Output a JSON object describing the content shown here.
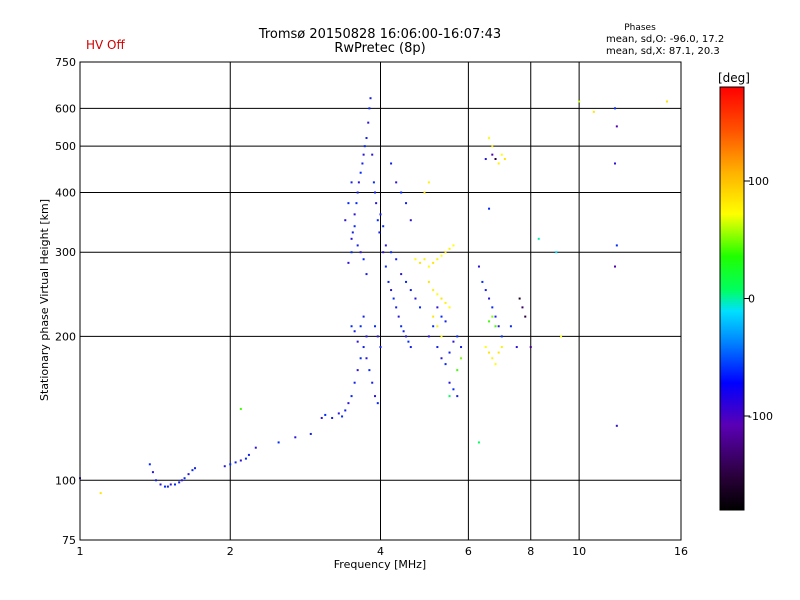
{
  "header": {
    "hv_status": "HV Off",
    "title": "Tromsø 20150828 16:06:00-16:07:43",
    "subtitle": "RwPretec (8p)"
  },
  "phase_stats": {
    "title": "Phases",
    "o_line": "mean, sd,O: -96.0, 17.2",
    "x_line": "mean, sd,X:  87.1, 20.3"
  },
  "colorbar": {
    "unit_label": "[deg]",
    "range": [
      -180,
      180
    ],
    "ticks": [
      {
        "value": 100,
        "label": "100"
      },
      {
        "value": 0,
        "label": "0"
      },
      {
        "value": -100,
        "label": "-100"
      }
    ]
  },
  "chart_data": {
    "type": "scatter",
    "title": "Tromsø 20150828 16:06:00-16:07:43",
    "subtitle": "RwPretec (8p)",
    "xlabel": "Frequency [MHz]",
    "ylabel": "Stationary phase Virtual Height [km]",
    "x_scale": "log",
    "y_scale": "log",
    "xlim": [
      1,
      16
    ],
    "ylim": [
      75,
      750
    ],
    "x_ticks": [
      {
        "value": 1,
        "label": "1"
      },
      {
        "value": 2,
        "label": "2"
      },
      {
        "value": 4,
        "label": "4"
      },
      {
        "value": 6,
        "label": "6"
      },
      {
        "value": 8,
        "label": "8"
      },
      {
        "value": 10,
        "label": "10"
      },
      {
        "value": 16,
        "label": "16"
      }
    ],
    "y_ticks": [
      {
        "value": 75,
        "label": "75"
      },
      {
        "value": 100,
        "label": "100"
      },
      {
        "value": 200,
        "label": "200"
      },
      {
        "value": 300,
        "label": "300"
      },
      {
        "value": 400,
        "label": "400"
      },
      {
        "value": 500,
        "label": "500"
      },
      {
        "value": 600,
        "label": "600"
      },
      {
        "value": 750,
        "label": "750"
      }
    ],
    "grid": true,
    "color_by": "phase_deg",
    "points": [
      [
        1.0,
        101,
        -110
      ],
      [
        1.1,
        94,
        110
      ],
      [
        1.38,
        108,
        -100
      ],
      [
        1.4,
        104,
        -110
      ],
      [
        1.42,
        100,
        -105
      ],
      [
        1.45,
        98,
        -110
      ],
      [
        1.48,
        97,
        -100
      ],
      [
        1.5,
        97,
        -105
      ],
      [
        1.52,
        98,
        -110
      ],
      [
        1.55,
        98,
        -100
      ],
      [
        1.58,
        99,
        -105
      ],
      [
        1.6,
        100,
        -110
      ],
      [
        1.62,
        101,
        -100
      ],
      [
        1.65,
        103,
        -110
      ],
      [
        1.68,
        105,
        -100
      ],
      [
        1.7,
        106,
        -105
      ],
      [
        1.95,
        107,
        -110
      ],
      [
        2.0,
        108,
        -100
      ],
      [
        2.05,
        109,
        -105
      ],
      [
        2.1,
        110,
        -110
      ],
      [
        2.15,
        111,
        -100
      ],
      [
        2.18,
        113,
        -105
      ],
      [
        2.25,
        117,
        -110
      ],
      [
        2.1,
        141,
        40
      ],
      [
        2.5,
        120,
        -100
      ],
      [
        2.7,
        123,
        -110
      ],
      [
        2.9,
        125,
        -105
      ],
      [
        3.05,
        135,
        -110
      ],
      [
        3.1,
        137,
        -100
      ],
      [
        3.2,
        135,
        -105
      ],
      [
        3.3,
        138,
        -110
      ],
      [
        3.35,
        136,
        -100
      ],
      [
        3.4,
        140,
        -105
      ],
      [
        3.45,
        145,
        -110
      ],
      [
        3.5,
        150,
        -100
      ],
      [
        3.55,
        160,
        -105
      ],
      [
        3.6,
        170,
        -110
      ],
      [
        3.65,
        180,
        -100
      ],
      [
        3.7,
        190,
        -105
      ],
      [
        3.75,
        200,
        -110
      ],
      [
        3.5,
        210,
        -100
      ],
      [
        3.55,
        205,
        -105
      ],
      [
        3.6,
        195,
        -110
      ],
      [
        3.65,
        210,
        -100
      ],
      [
        3.7,
        220,
        -105
      ],
      [
        3.75,
        180,
        -110
      ],
      [
        3.8,
        170,
        -100
      ],
      [
        3.85,
        160,
        -105
      ],
      [
        3.9,
        150,
        -110
      ],
      [
        3.95,
        145,
        -100
      ],
      [
        4.0,
        190,
        -105
      ],
      [
        3.95,
        200,
        -110
      ],
      [
        3.9,
        210,
        -100
      ],
      [
        3.45,
        285,
        -110
      ],
      [
        3.5,
        300,
        -100
      ],
      [
        3.52,
        330,
        -105
      ],
      [
        3.55,
        360,
        -110
      ],
      [
        3.58,
        380,
        -100
      ],
      [
        3.6,
        400,
        -105
      ],
      [
        3.62,
        420,
        -110
      ],
      [
        3.65,
        440,
        -100
      ],
      [
        3.68,
        460,
        -105
      ],
      [
        3.7,
        480,
        -110
      ],
      [
        3.72,
        500,
        -100
      ],
      [
        3.75,
        520,
        -105
      ],
      [
        3.78,
        560,
        -110
      ],
      [
        3.8,
        600,
        -100
      ],
      [
        3.82,
        630,
        -105
      ],
      [
        3.85,
        480,
        -110
      ],
      [
        3.88,
        420,
        -100
      ],
      [
        3.9,
        400,
        -105
      ],
      [
        3.92,
        380,
        -110
      ],
      [
        3.95,
        350,
        -100
      ],
      [
        3.98,
        330,
        -105
      ],
      [
        3.5,
        320,
        -110
      ],
      [
        3.55,
        340,
        -100
      ],
      [
        3.6,
        310,
        -105
      ],
      [
        3.65,
        300,
        -110
      ],
      [
        3.7,
        290,
        -100
      ],
      [
        3.75,
        270,
        -105
      ],
      [
        3.4,
        350,
        -110
      ],
      [
        3.45,
        380,
        -100
      ],
      [
        3.5,
        420,
        -105
      ],
      [
        4.05,
        300,
        -110
      ],
      [
        4.1,
        280,
        -100
      ],
      [
        4.15,
        260,
        -105
      ],
      [
        4.2,
        250,
        -110
      ],
      [
        4.25,
        240,
        -100
      ],
      [
        4.3,
        230,
        -105
      ],
      [
        4.35,
        220,
        -110
      ],
      [
        4.4,
        210,
        -100
      ],
      [
        4.45,
        205,
        -105
      ],
      [
        4.5,
        200,
        -110
      ],
      [
        4.55,
        195,
        -100
      ],
      [
        4.6,
        190,
        -105
      ],
      [
        4.1,
        310,
        -110
      ],
      [
        4.2,
        300,
        -100
      ],
      [
        4.3,
        290,
        -105
      ],
      [
        4.4,
        270,
        -110
      ],
      [
        4.5,
        260,
        -100
      ],
      [
        4.6,
        250,
        -105
      ],
      [
        4.7,
        240,
        -110
      ],
      [
        4.8,
        230,
        -100
      ],
      [
        4.2,
        460,
        -105
      ],
      [
        4.3,
        420,
        -110
      ],
      [
        4.4,
        400,
        -100
      ],
      [
        4.5,
        380,
        -105
      ],
      [
        4.6,
        350,
        -110
      ],
      [
        4.05,
        340,
        -100
      ],
      [
        4.0,
        360,
        -105
      ],
      [
        4.7,
        290,
        100
      ],
      [
        4.8,
        285,
        110
      ],
      [
        4.9,
        290,
        105
      ],
      [
        5.0,
        280,
        100
      ],
      [
        5.1,
        285,
        110
      ],
      [
        5.2,
        290,
        105
      ],
      [
        5.3,
        295,
        100
      ],
      [
        5.4,
        300,
        110
      ],
      [
        5.5,
        305,
        105
      ],
      [
        5.6,
        310,
        100
      ],
      [
        5.0,
        260,
        110
      ],
      [
        5.1,
        250,
        105
      ],
      [
        5.2,
        245,
        100
      ],
      [
        5.3,
        240,
        110
      ],
      [
        5.4,
        235,
        105
      ],
      [
        5.5,
        230,
        100
      ],
      [
        5.1,
        220,
        110
      ],
      [
        5.2,
        210,
        105
      ],
      [
        5.3,
        200,
        100
      ],
      [
        4.9,
        400,
        110
      ],
      [
        5.0,
        420,
        105
      ],
      [
        5.0,
        200,
        -110
      ],
      [
        5.1,
        210,
        -100
      ],
      [
        5.2,
        190,
        -105
      ],
      [
        5.3,
        180,
        -110
      ],
      [
        5.4,
        175,
        -100
      ],
      [
        5.5,
        185,
        -105
      ],
      [
        5.6,
        195,
        -110
      ],
      [
        5.7,
        200,
        -100
      ],
      [
        5.8,
        190,
        -105
      ],
      [
        5.2,
        230,
        -110
      ],
      [
        5.3,
        220,
        -100
      ],
      [
        5.4,
        215,
        -105
      ],
      [
        5.5,
        160,
        -110
      ],
      [
        5.6,
        155,
        -100
      ],
      [
        5.7,
        150,
        -105
      ],
      [
        5.8,
        180,
        60
      ],
      [
        5.7,
        170,
        40
      ],
      [
        5.5,
        150,
        0
      ],
      [
        6.3,
        120,
        0
      ],
      [
        6.3,
        280,
        -110
      ],
      [
        6.4,
        260,
        -100
      ],
      [
        6.5,
        250,
        -105
      ],
      [
        6.6,
        240,
        -110
      ],
      [
        6.7,
        230,
        -100
      ],
      [
        6.8,
        220,
        -105
      ],
      [
        6.9,
        210,
        -110
      ],
      [
        7.0,
        200,
        -100
      ],
      [
        6.5,
        470,
        -110
      ],
      [
        6.6,
        370,
        -100
      ],
      [
        6.7,
        480,
        -120
      ],
      [
        6.8,
        470,
        -150
      ],
      [
        6.5,
        190,
        100
      ],
      [
        6.6,
        185,
        110
      ],
      [
        6.7,
        180,
        105
      ],
      [
        6.8,
        175,
        100
      ],
      [
        6.9,
        185,
        110
      ],
      [
        7.0,
        190,
        105
      ],
      [
        6.6,
        520,
        100
      ],
      [
        6.7,
        500,
        110
      ],
      [
        6.9,
        460,
        105
      ],
      [
        7.0,
        480,
        100
      ],
      [
        7.1,
        470,
        110
      ],
      [
        6.6,
        215,
        40
      ],
      [
        6.7,
        220,
        60
      ],
      [
        6.8,
        210,
        40
      ],
      [
        7.6,
        240,
        -160
      ],
      [
        7.7,
        230,
        -140
      ],
      [
        7.8,
        220,
        -150
      ],
      [
        7.5,
        190,
        -110
      ],
      [
        7.3,
        210,
        -100
      ],
      [
        8.3,
        320,
        -10
      ],
      [
        8.0,
        190,
        -130
      ],
      [
        9.0,
        300,
        -20
      ],
      [
        9.2,
        200,
        100
      ],
      [
        10.0,
        620,
        80
      ],
      [
        10.7,
        590,
        110
      ],
      [
        11.8,
        600,
        -100
      ],
      [
        11.9,
        550,
        -120
      ],
      [
        11.8,
        460,
        -110
      ],
      [
        11.9,
        310,
        -100
      ],
      [
        11.8,
        280,
        -120
      ],
      [
        11.9,
        130,
        -110
      ],
      [
        15.0,
        620,
        110
      ]
    ]
  }
}
